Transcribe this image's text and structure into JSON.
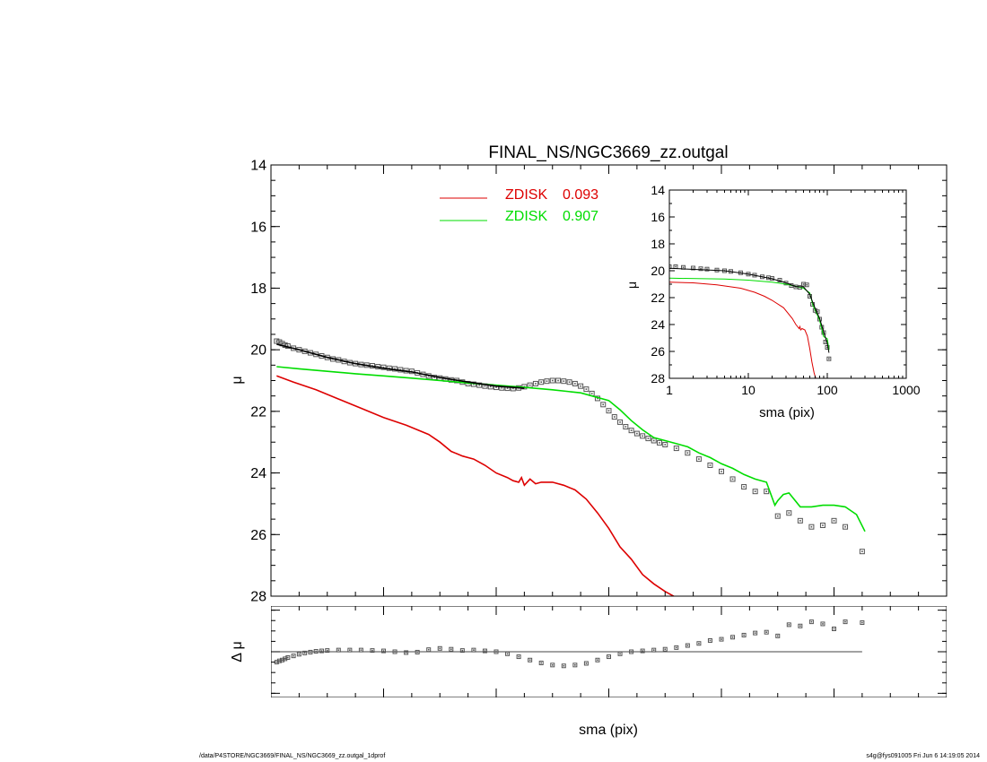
{
  "footer": {
    "path": "/data/P4STORE/NGC3669/FINAL_NS/NGC3669_zz.outgal_1dprof",
    "stamp": "s4g@fys091005  Fri Jun  6 14:19:05 2014"
  },
  "colors": {
    "zdisk1": "#dd0000",
    "zdisk2": "#00dd00",
    "data": "#555555",
    "model": "#000000"
  },
  "chart_data": [
    {
      "id": "main",
      "type": "scatter",
      "title": "FINAL_NS/NGC3669_zz.outgal",
      "xlabel": "",
      "ylabel": "μ",
      "xlim": [
        0,
        120
      ],
      "ylim": [
        28,
        14
      ],
      "xticks": [
        0,
        20,
        40,
        60,
        80,
        100,
        120
      ],
      "yticks": [
        14,
        16,
        18,
        20,
        22,
        24,
        26,
        28
      ],
      "legend": [
        {
          "label": "ZDISK",
          "value": "0.093",
          "color": "#dd0000"
        },
        {
          "label": "ZDISK",
          "value": "0.907",
          "color": "#00dd00"
        }
      ],
      "series": [
        {
          "kind": "points",
          "x": [
            1,
            1.5,
            2,
            2.5,
            3,
            4,
            5,
            6,
            7,
            8,
            9,
            10,
            11,
            12,
            13,
            14,
            15,
            16,
            17,
            18,
            19,
            20,
            21,
            22,
            23,
            24,
            25,
            26,
            27,
            28,
            29,
            30,
            31,
            32,
            33,
            34,
            35,
            36,
            37,
            38,
            39,
            40,
            41,
            42,
            43,
            44,
            45,
            46,
            47,
            48,
            49,
            50,
            51,
            52,
            53,
            54,
            55,
            56,
            57,
            58,
            59,
            60,
            61,
            62,
            63,
            64,
            65,
            66,
            67,
            68,
            69,
            70,
            72,
            74,
            76,
            78,
            80,
            82,
            84,
            86,
            88,
            90,
            92,
            94,
            96,
            98,
            100,
            102,
            105
          ],
          "y": [
            19.72,
            19.75,
            19.8,
            19.85,
            19.88,
            19.95,
            20.0,
            20.05,
            20.1,
            20.15,
            20.2,
            20.25,
            20.3,
            20.33,
            20.38,
            20.42,
            20.45,
            20.48,
            20.5,
            20.52,
            20.55,
            20.57,
            20.6,
            20.62,
            20.65,
            20.68,
            20.7,
            20.75,
            20.8,
            20.85,
            20.9,
            20.92,
            20.95,
            20.98,
            21.0,
            21.05,
            21.1,
            21.12,
            21.15,
            21.18,
            21.2,
            21.22,
            21.24,
            21.25,
            21.26,
            21.24,
            21.2,
            21.15,
            21.1,
            21.05,
            21.02,
            21.0,
            21.0,
            21.02,
            21.05,
            21.1,
            21.18,
            21.28,
            21.42,
            21.58,
            21.78,
            21.98,
            22.18,
            22.35,
            22.5,
            22.62,
            22.72,
            22.8,
            22.88,
            22.95,
            23.02,
            23.08,
            23.2,
            23.35,
            23.55,
            23.75,
            23.95,
            24.2,
            24.45,
            24.6,
            24.6,
            25.4,
            25.3,
            25.55,
            25.75,
            25.7,
            25.55,
            25.75,
            26.55
          ]
        },
        {
          "kind": "line",
          "name": "ZDISK 0.093",
          "color": "#dd0000",
          "x": [
            1,
            4,
            8,
            12,
            16,
            20,
            24,
            28,
            30,
            32,
            34,
            36,
            38,
            40,
            42,
            43,
            44,
            44.5,
            45,
            46,
            47,
            48,
            50,
            52,
            54,
            56,
            58,
            60,
            62,
            64,
            66,
            68,
            70,
            72
          ],
          "y": [
            20.85,
            21.05,
            21.3,
            21.6,
            21.9,
            22.2,
            22.45,
            22.75,
            23.0,
            23.3,
            23.45,
            23.55,
            23.75,
            24.0,
            24.15,
            24.25,
            24.3,
            24.15,
            24.4,
            24.2,
            24.35,
            24.3,
            24.3,
            24.4,
            24.55,
            24.85,
            25.3,
            25.8,
            26.4,
            26.8,
            27.3,
            27.6,
            27.85,
            28.05
          ]
        },
        {
          "kind": "line",
          "name": "ZDISK 0.907",
          "color": "#00dd00",
          "x": [
            1,
            5,
            10,
            15,
            20,
            25,
            30,
            35,
            40,
            45,
            50,
            55,
            60,
            62,
            64,
            66,
            68,
            70,
            72,
            74,
            76,
            78,
            80,
            82,
            84,
            86,
            88,
            89.5,
            90,
            91,
            92,
            94,
            96,
            98,
            100,
            102,
            104,
            105.5
          ],
          "y": [
            20.55,
            20.62,
            20.7,
            20.78,
            20.85,
            20.92,
            21.0,
            21.08,
            21.15,
            21.22,
            21.3,
            21.4,
            21.65,
            21.95,
            22.3,
            22.6,
            22.85,
            22.95,
            23.05,
            23.15,
            23.35,
            23.5,
            23.7,
            23.85,
            24.05,
            24.2,
            24.3,
            25.05,
            24.9,
            24.7,
            24.65,
            25.1,
            25.1,
            25.05,
            25.05,
            25.1,
            25.35,
            25.9
          ]
        },
        {
          "kind": "line",
          "name": "model",
          "color": "#000000",
          "x": [
            1,
            5,
            10,
            15,
            20,
            25,
            30,
            35,
            40,
            45
          ],
          "y": [
            19.82,
            20.0,
            20.25,
            20.45,
            20.6,
            20.72,
            20.9,
            21.05,
            21.18,
            21.25
          ]
        }
      ]
    },
    {
      "id": "residual",
      "type": "scatter",
      "xlabel": "sma (pix)",
      "ylabel": "Δ μ",
      "xlim": [
        0,
        120
      ],
      "ylim": [
        -1.1,
        1.1
      ],
      "xticks": [
        0,
        20,
        40,
        60,
        80,
        100,
        120
      ],
      "yticks": [
        -1,
        0,
        1
      ],
      "series": [
        {
          "kind": "points",
          "x": [
            1,
            1.5,
            2,
            2.5,
            3,
            4,
            5,
            6,
            7,
            8,
            9,
            10,
            12,
            14,
            16,
            18,
            20,
            22,
            24,
            26,
            28,
            30,
            32,
            34,
            36,
            38,
            40,
            42,
            44,
            46,
            48,
            50,
            52,
            54,
            56,
            58,
            60,
            62,
            64,
            66,
            68,
            70,
            72,
            74,
            76,
            78,
            80,
            82,
            84,
            86,
            88,
            90,
            92,
            94,
            96,
            98,
            100,
            102,
            105
          ],
          "y": [
            -0.25,
            -0.22,
            -0.2,
            -0.17,
            -0.14,
            -0.1,
            -0.06,
            -0.03,
            -0.01,
            0.01,
            0.02,
            0.03,
            0.04,
            0.04,
            0.04,
            0.03,
            0.02,
            0.0,
            -0.02,
            -0.01,
            0.05,
            0.08,
            0.06,
            0.03,
            0.04,
            0.02,
            0.0,
            -0.05,
            -0.12,
            -0.2,
            -0.27,
            -0.32,
            -0.34,
            -0.32,
            -0.28,
            -0.2,
            -0.12,
            -0.05,
            0.0,
            0.02,
            0.04,
            0.06,
            0.1,
            0.15,
            0.2,
            0.27,
            0.3,
            0.35,
            0.4,
            0.45,
            0.47,
            0.38,
            0.65,
            0.62,
            0.72,
            0.67,
            0.55,
            0.72,
            0.7
          ]
        }
      ]
    },
    {
      "id": "inset",
      "type": "scatter",
      "xlabel": "sma (pix)",
      "ylabel": "μ",
      "xscale": "log",
      "xlim": [
        1,
        1000
      ],
      "ylim": [
        28,
        14
      ],
      "xticks": [
        1,
        10,
        100,
        1000
      ],
      "yticks": [
        14,
        16,
        18,
        20,
        22,
        24,
        26,
        28
      ],
      "series": [
        {
          "kind": "points",
          "x": [
            1,
            1.2,
            1.5,
            2,
            2.5,
            3,
            4,
            5,
            6,
            8,
            10,
            12,
            15,
            18,
            20,
            25,
            30,
            35,
            40,
            45,
            50,
            55,
            60,
            65,
            70,
            75,
            80,
            85,
            90,
            95,
            100,
            105
          ],
          "y": [
            19.7,
            19.7,
            19.75,
            19.8,
            19.85,
            19.88,
            19.95,
            20.0,
            20.05,
            20.15,
            20.25,
            20.33,
            20.45,
            20.52,
            20.57,
            20.7,
            20.92,
            21.1,
            21.2,
            21.24,
            21.0,
            21.05,
            21.9,
            22.5,
            22.95,
            23.05,
            23.6,
            24.2,
            24.6,
            25.3,
            25.7,
            26.55
          ]
        },
        {
          "kind": "line",
          "name": "ZDISK 0.093",
          "color": "#dd0000",
          "x": [
            1,
            2,
            4,
            8,
            12,
            16,
            20,
            28,
            36,
            40,
            44,
            45,
            46,
            48,
            52,
            56,
            60,
            64,
            68,
            72
          ],
          "y": [
            20.85,
            20.9,
            21.05,
            21.3,
            21.6,
            21.9,
            22.2,
            22.75,
            23.55,
            24.0,
            24.3,
            24.15,
            24.4,
            24.3,
            24.4,
            24.85,
            25.8,
            26.8,
            27.6,
            28.05
          ]
        },
        {
          "kind": "line",
          "name": "ZDISK 0.907",
          "color": "#00dd00",
          "x": [
            1,
            5,
            10,
            20,
            30,
            40,
            50,
            60,
            66,
            72,
            80,
            90,
            100,
            105
          ],
          "y": [
            20.55,
            20.62,
            20.7,
            20.85,
            21.0,
            21.15,
            21.3,
            21.65,
            22.6,
            23.05,
            23.7,
            24.9,
            25.05,
            25.9
          ]
        },
        {
          "kind": "line",
          "name": "model",
          "color": "#000000",
          "x": [
            1,
            5,
            10,
            20,
            30,
            40,
            50,
            60,
            66,
            72,
            80,
            90,
            100,
            105
          ],
          "y": [
            19.82,
            20.0,
            20.25,
            20.6,
            20.9,
            21.18,
            21.2,
            21.75,
            22.4,
            22.95,
            23.55,
            24.55,
            25.4,
            26.1
          ]
        }
      ]
    }
  ]
}
